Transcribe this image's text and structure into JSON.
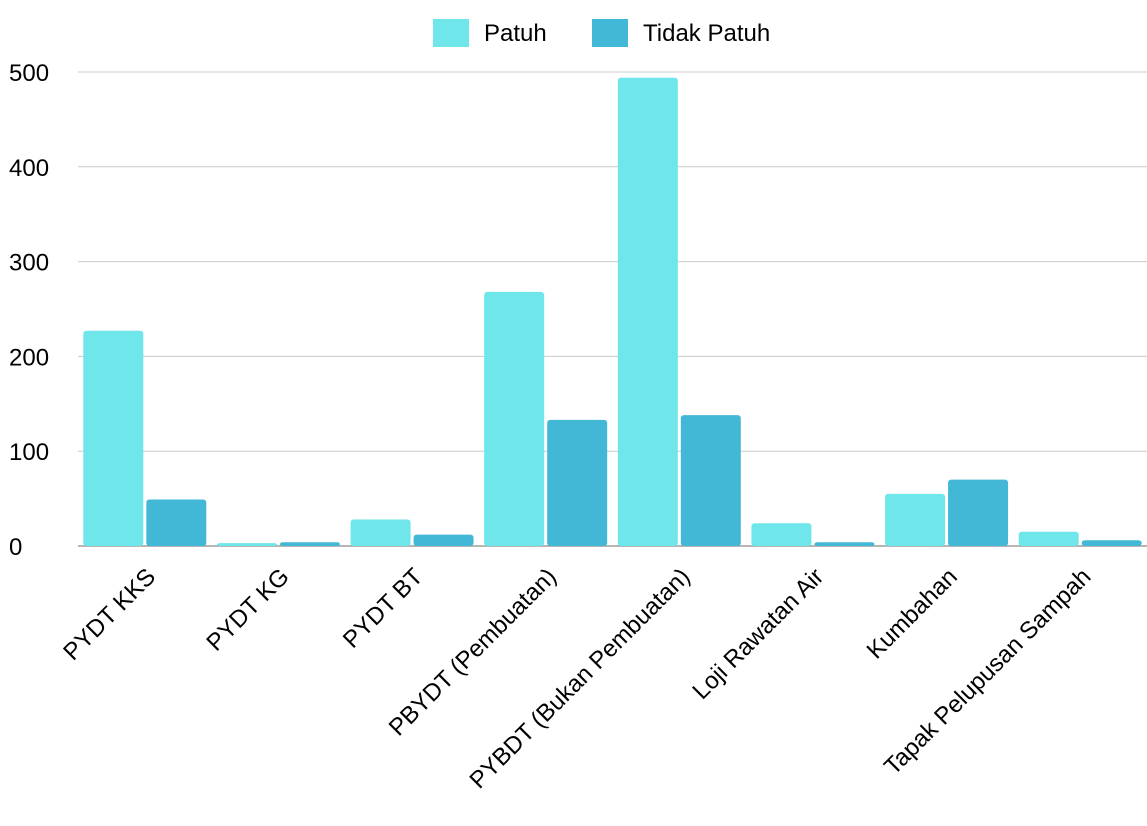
{
  "chart_data": {
    "type": "bar",
    "categories": [
      "PYDT KKS",
      "PYDT KG",
      "PYDT BT",
      "PBYDT (Pembuatan)",
      "PYBDT (Bukan Pembuatan)",
      "Loji Rawatan Air",
      "Kumbahan",
      "Tapak Pelupusan Sampah"
    ],
    "series": [
      {
        "name": "Patuh",
        "color": "#6ee6ea",
        "values": [
          227,
          3,
          28,
          268,
          494,
          24,
          55,
          15
        ]
      },
      {
        "name": "Tidak Patuh",
        "color": "#43b8d6",
        "values": [
          49,
          4,
          12,
          133,
          138,
          4,
          70,
          6
        ]
      }
    ],
    "ylim": [
      0,
      500
    ],
    "yticks": [
      "0",
      "100",
      "200",
      "300",
      "400",
      "500"
    ],
    "grid": true,
    "legend_position": "top-center",
    "title": "",
    "xlabel": "",
    "ylabel": ""
  }
}
